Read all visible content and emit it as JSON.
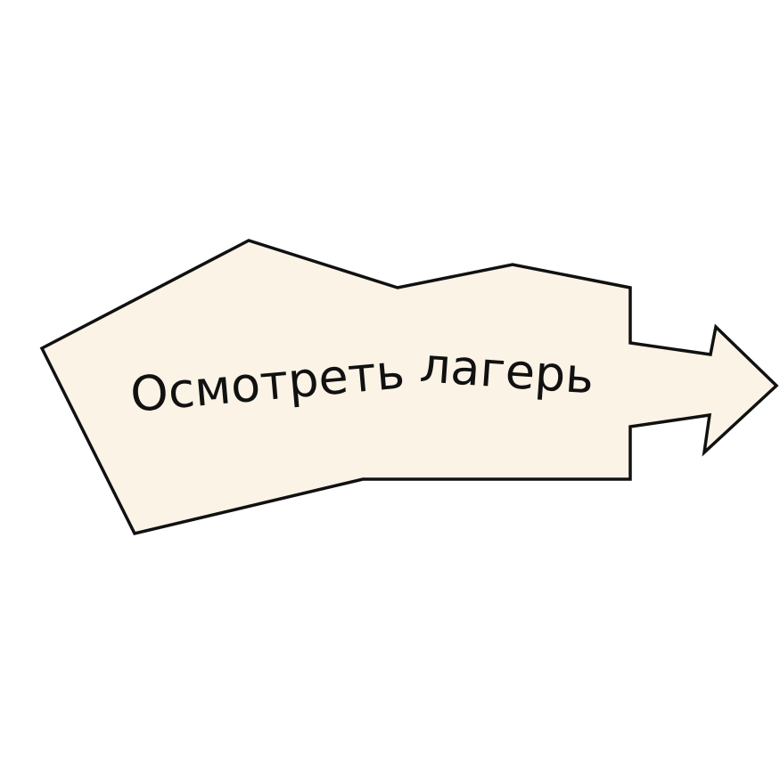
{
  "button": {
    "label_words": [
      "Осмотреть",
      "лагерь"
    ],
    "fill_color": "#FBF3E6",
    "stroke_color": "#111111",
    "shape": "irregular-arrow-right"
  }
}
